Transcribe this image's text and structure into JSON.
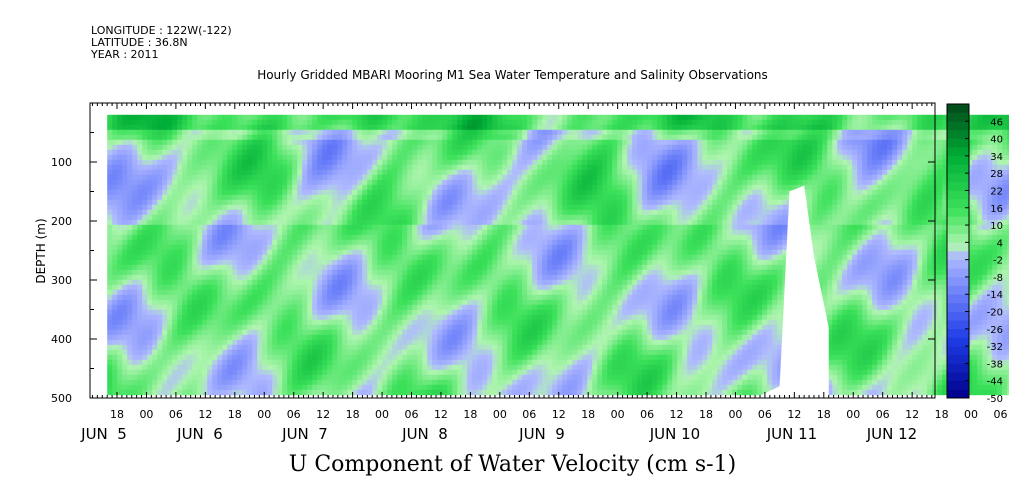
{
  "header": {
    "longitude": "LONGITUDE : 122W(-122)",
    "latitude": "LATITUDE : 36.8N",
    "year": "YEAR : 2011"
  },
  "chart_data": {
    "type": "heatmap",
    "title": "Hourly Gridded MBARI Mooring M1 Sea Water Temperature and Salinity Observations",
    "xlabel": "U Component of Water Velocity (cm s-1)",
    "ylabel": "DEPTH (m)",
    "ylim": [
      500,
      0
    ],
    "y_ticks": [
      100,
      200,
      300,
      400,
      500
    ],
    "x_hour_ticks": [
      "18",
      "00",
      "06",
      "12",
      "18",
      "00",
      "06",
      "12",
      "18",
      "00",
      "06",
      "12",
      "18",
      "00",
      "06",
      "12",
      "18",
      "00",
      "06",
      "12",
      "18",
      "00",
      "06",
      "12",
      "18",
      "00",
      "06",
      "12",
      "18",
      "00",
      "06",
      "12"
    ],
    "x_date_labels": [
      "JUN  5",
      "JUN  6",
      "JUN  7",
      "JUN  8",
      "JUN  9",
      "JUN 10",
      "JUN 11",
      "JUN 12"
    ],
    "colorbar": {
      "tick_labels": [
        "46",
        "40",
        "34",
        "28",
        "22",
        "16",
        "10",
        "4",
        "-2",
        "-8",
        "-14",
        "-20",
        "-26",
        "-32",
        "-38",
        "-44",
        "-50"
      ],
      "range": [
        -50,
        52
      ],
      "step": 3
    },
    "data_extent": {
      "time_start": "2011-06-04 16:00",
      "time_end": "2011-06-12 11:00",
      "depth_min_m": 20,
      "depth_max_m": 490
    }
  },
  "colors": {
    "low": "#00008a",
    "mid_low": "#a8b4ff",
    "mid_high": "#a8f5a8",
    "high": "#00a030",
    "top": "#004818"
  }
}
